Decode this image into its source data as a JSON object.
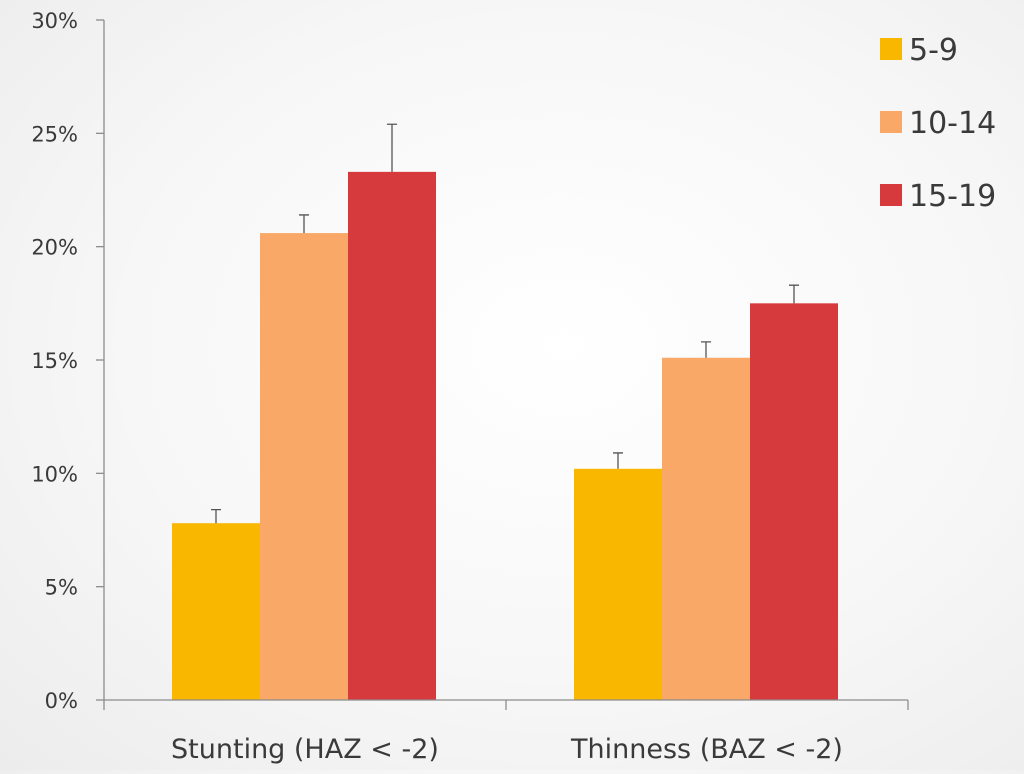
{
  "chart_data": {
    "type": "bar",
    "title": "",
    "xlabel": "",
    "ylabel": "",
    "categories": [
      "Stunting (HAZ < -2)",
      "Thinness (BAZ < -2)"
    ],
    "series": [
      {
        "name": "5-9",
        "color": "#f9b700",
        "values": [
          7.8,
          10.2
        ],
        "error_upper": [
          0.6,
          0.7
        ]
      },
      {
        "name": "10-14",
        "color": "#f9a868",
        "values": [
          20.6,
          15.1
        ],
        "error_upper": [
          0.8,
          0.7
        ]
      },
      {
        "name": "15-19",
        "color": "#d63a3c",
        "values": [
          23.3,
          17.5
        ],
        "error_upper": [
          2.1,
          0.8
        ]
      }
    ],
    "ylim": [
      0,
      30
    ],
    "yticks": [
      0,
      5,
      10,
      15,
      20,
      25,
      30
    ],
    "ytick_labels": [
      "0%",
      "5%",
      "10%",
      "15%",
      "20%",
      "25%",
      "30%"
    ],
    "grid": false,
    "legend_position": "top-right",
    "axis_color": "#8c8c8c"
  }
}
